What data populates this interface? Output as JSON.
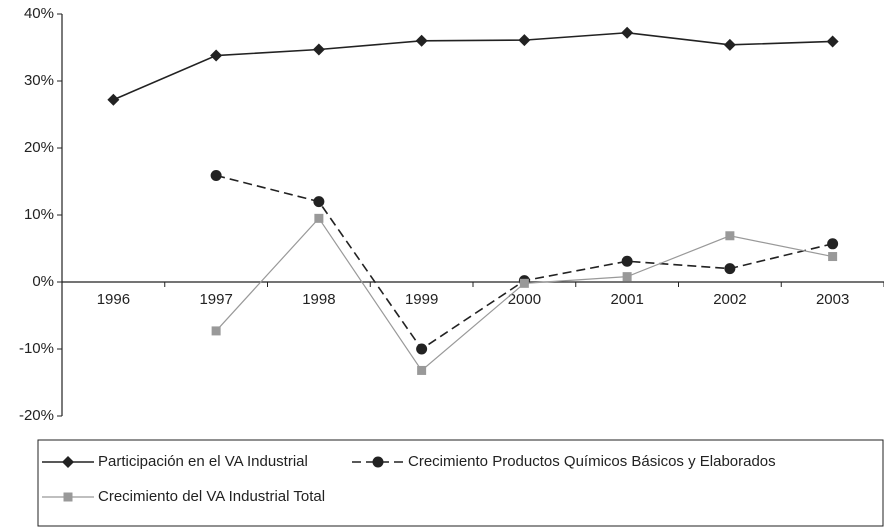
{
  "chart_data": {
    "type": "line",
    "categories": [
      "1996",
      "1997",
      "1998",
      "1999",
      "2000",
      "2001",
      "2002",
      "2003"
    ],
    "series": [
      {
        "name": "Participación en el VA Industrial",
        "color": "#222222",
        "marker": "diamond",
        "line_style": "solid",
        "values": [
          27.2,
          33.8,
          34.7,
          36.0,
          36.1,
          37.2,
          35.4,
          35.9
        ]
      },
      {
        "name": "Crecimiento Productos Químicos Básicos y Elaborados",
        "color": "#222222",
        "marker": "circle",
        "line_style": "dashed",
        "values": [
          null,
          15.9,
          12.0,
          -10.0,
          0.2,
          3.1,
          2.0,
          5.7
        ]
      },
      {
        "name": "Crecimiento del VA Industrial Total",
        "color": "#999999",
        "marker": "square",
        "line_style": "solid",
        "values": [
          null,
          -7.3,
          9.5,
          -13.2,
          -0.2,
          0.8,
          6.9,
          3.8
        ]
      }
    ],
    "ylim": [
      -20,
      40
    ],
    "yticks": [
      {
        "value": -20,
        "label": "-20%"
      },
      {
        "value": -10,
        "label": "-10%"
      },
      {
        "value": 0,
        "label": "0%"
      },
      {
        "value": 10,
        "label": "10%"
      },
      {
        "value": 20,
        "label": "20%"
      },
      {
        "value": 30,
        "label": "30%"
      },
      {
        "value": 40,
        "label": "40%"
      }
    ],
    "grid": false,
    "legend": "bottom"
  }
}
